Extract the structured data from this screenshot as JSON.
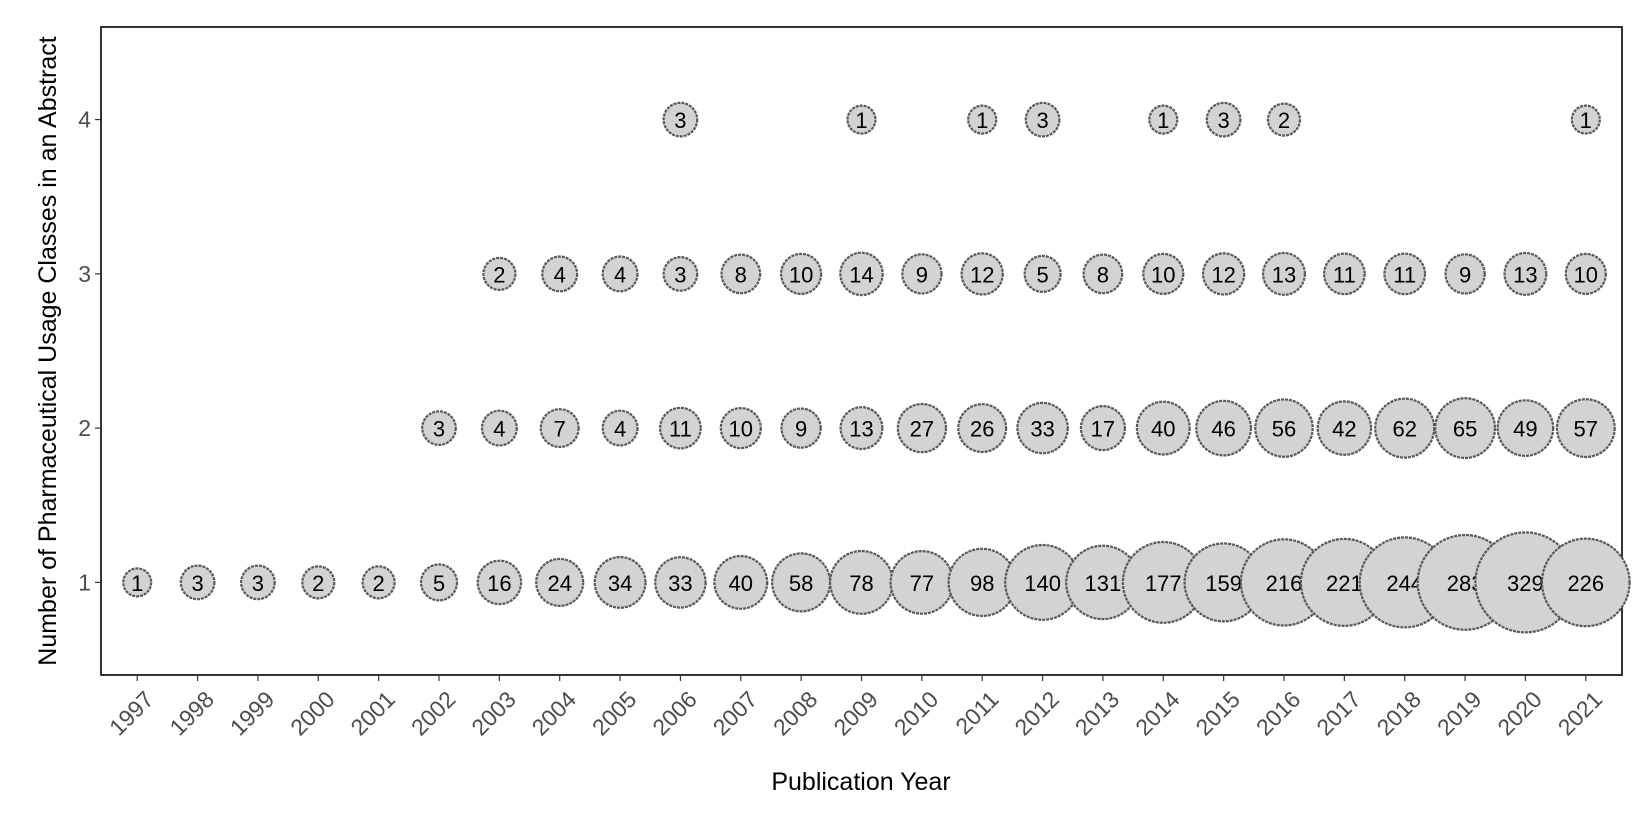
{
  "chart_data": {
    "type": "scatter",
    "title": "",
    "xlabel": "Publication Year",
    "ylabel": "Number of Pharmaceutical Usage Classes in an Abstract",
    "x": [
      1997,
      1998,
      1999,
      2000,
      2001,
      2002,
      2003,
      2004,
      2005,
      2006,
      2007,
      2008,
      2009,
      2010,
      2011,
      2012,
      2013,
      2014,
      2015,
      2016,
      2017,
      2018,
      2019,
      2020,
      2021
    ],
    "y_ticks": [
      1,
      2,
      3,
      4
    ],
    "ylim": [
      0.4,
      4.6
    ],
    "grid": false,
    "legend": "none",
    "colors": {
      "bubble_fill": "#d3d3d3",
      "bubble_stroke": "#595959"
    },
    "points": [
      {
        "x": 1997,
        "y": 1,
        "count": 1
      },
      {
        "x": 1998,
        "y": 1,
        "count": 3
      },
      {
        "x": 1999,
        "y": 1,
        "count": 3
      },
      {
        "x": 2000,
        "y": 1,
        "count": 2
      },
      {
        "x": 2001,
        "y": 1,
        "count": 2
      },
      {
        "x": 2002,
        "y": 1,
        "count": 5
      },
      {
        "x": 2003,
        "y": 1,
        "count": 16
      },
      {
        "x": 2004,
        "y": 1,
        "count": 24
      },
      {
        "x": 2005,
        "y": 1,
        "count": 34
      },
      {
        "x": 2006,
        "y": 1,
        "count": 33
      },
      {
        "x": 2007,
        "y": 1,
        "count": 40
      },
      {
        "x": 2008,
        "y": 1,
        "count": 58
      },
      {
        "x": 2009,
        "y": 1,
        "count": 78
      },
      {
        "x": 2010,
        "y": 1,
        "count": 77
      },
      {
        "x": 2011,
        "y": 1,
        "count": 98
      },
      {
        "x": 2012,
        "y": 1,
        "count": 140
      },
      {
        "x": 2013,
        "y": 1,
        "count": 131
      },
      {
        "x": 2014,
        "y": 1,
        "count": 177
      },
      {
        "x": 2015,
        "y": 1,
        "count": 159
      },
      {
        "x": 2016,
        "y": 1,
        "count": 216
      },
      {
        "x": 2017,
        "y": 1,
        "count": 221
      },
      {
        "x": 2018,
        "y": 1,
        "count": 244
      },
      {
        "x": 2019,
        "y": 1,
        "count": 283
      },
      {
        "x": 2020,
        "y": 1,
        "count": 329
      },
      {
        "x": 2021,
        "y": 1,
        "count": 226
      },
      {
        "x": 2002,
        "y": 2,
        "count": 3
      },
      {
        "x": 2003,
        "y": 2,
        "count": 4
      },
      {
        "x": 2004,
        "y": 2,
        "count": 7
      },
      {
        "x": 2005,
        "y": 2,
        "count": 4
      },
      {
        "x": 2006,
        "y": 2,
        "count": 11
      },
      {
        "x": 2007,
        "y": 2,
        "count": 10
      },
      {
        "x": 2008,
        "y": 2,
        "count": 9
      },
      {
        "x": 2009,
        "y": 2,
        "count": 13
      },
      {
        "x": 2010,
        "y": 2,
        "count": 27
      },
      {
        "x": 2011,
        "y": 2,
        "count": 26
      },
      {
        "x": 2012,
        "y": 2,
        "count": 33
      },
      {
        "x": 2013,
        "y": 2,
        "count": 17
      },
      {
        "x": 2014,
        "y": 2,
        "count": 40
      },
      {
        "x": 2015,
        "y": 2,
        "count": 46
      },
      {
        "x": 2016,
        "y": 2,
        "count": 56
      },
      {
        "x": 2017,
        "y": 2,
        "count": 42
      },
      {
        "x": 2018,
        "y": 2,
        "count": 62
      },
      {
        "x": 2019,
        "y": 2,
        "count": 65
      },
      {
        "x": 2020,
        "y": 2,
        "count": 49
      },
      {
        "x": 2021,
        "y": 2,
        "count": 57
      },
      {
        "x": 2003,
        "y": 3,
        "count": 2
      },
      {
        "x": 2004,
        "y": 3,
        "count": 4
      },
      {
        "x": 2005,
        "y": 3,
        "count": 4
      },
      {
        "x": 2006,
        "y": 3,
        "count": 3
      },
      {
        "x": 2007,
        "y": 3,
        "count": 8
      },
      {
        "x": 2008,
        "y": 3,
        "count": 10
      },
      {
        "x": 2009,
        "y": 3,
        "count": 14
      },
      {
        "x": 2010,
        "y": 3,
        "count": 9
      },
      {
        "x": 2011,
        "y": 3,
        "count": 12
      },
      {
        "x": 2012,
        "y": 3,
        "count": 5
      },
      {
        "x": 2013,
        "y": 3,
        "count": 8
      },
      {
        "x": 2014,
        "y": 3,
        "count": 10
      },
      {
        "x": 2015,
        "y": 3,
        "count": 12
      },
      {
        "x": 2016,
        "y": 3,
        "count": 13
      },
      {
        "x": 2017,
        "y": 3,
        "count": 11
      },
      {
        "x": 2018,
        "y": 3,
        "count": 11
      },
      {
        "x": 2019,
        "y": 3,
        "count": 9
      },
      {
        "x": 2020,
        "y": 3,
        "count": 13
      },
      {
        "x": 2021,
        "y": 3,
        "count": 10
      },
      {
        "x": 2006,
        "y": 4,
        "count": 3
      },
      {
        "x": 2009,
        "y": 4,
        "count": 1
      },
      {
        "x": 2011,
        "y": 4,
        "count": 1
      },
      {
        "x": 2012,
        "y": 4,
        "count": 3
      },
      {
        "x": 2014,
        "y": 4,
        "count": 1
      },
      {
        "x": 2015,
        "y": 4,
        "count": 3
      },
      {
        "x": 2016,
        "y": 4,
        "count": 2
      },
      {
        "x": 2021,
        "y": 4,
        "count": 1
      }
    ]
  }
}
